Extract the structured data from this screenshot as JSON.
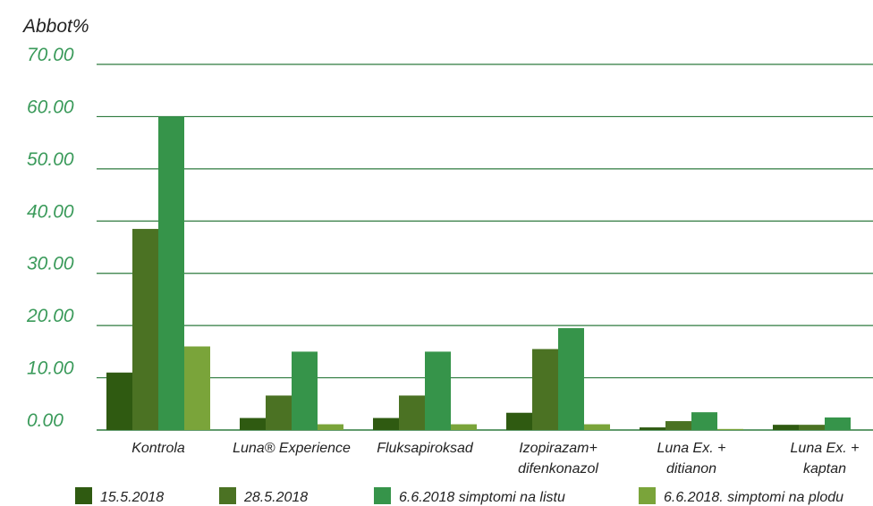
{
  "chart_data": {
    "type": "bar",
    "title": "",
    "ylabel": "Abbot%",
    "xlabel": "",
    "ylim": [
      0,
      70
    ],
    "yticks": [
      "0.00",
      "10.00",
      "20.00",
      "30.00",
      "40.00",
      "50.00",
      "60.00",
      "70.00"
    ],
    "grid": true,
    "legend_position": "bottom",
    "categories": [
      [
        "Kontrola"
      ],
      [
        "Luna® Experience"
      ],
      [
        "Fluksapiroksad"
      ],
      [
        "Izopirazam+",
        "difenkonazol"
      ],
      [
        "Luna Ex. +",
        "ditianon"
      ],
      [
        "Luna Ex. +",
        "kaptan"
      ]
    ],
    "series": [
      {
        "name": "15.5.2018",
        "color": "#2f5a11",
        "values": [
          11.0,
          2.3,
          2.3,
          3.3,
          0.5,
          1.0
        ]
      },
      {
        "name": "28.5.2018",
        "color": "#4b7223",
        "values": [
          38.5,
          6.6,
          6.6,
          15.5,
          1.7,
          1.0
        ]
      },
      {
        "name": "6.6.2018 simptomi na listu",
        "color": "#36944a",
        "values": [
          60.0,
          15.0,
          15.0,
          19.5,
          3.4,
          2.4
        ]
      },
      {
        "name": "6.6.2018. simptomi na plodu",
        "color": "#7aa43a",
        "values": [
          16.0,
          1.1,
          1.1,
          1.1,
          0.2,
          0.0
        ]
      }
    ],
    "colors": {
      "axis_tick_text": "#3a9a5a",
      "grid": "#2e7a3e",
      "axis_title_text": "#222222",
      "category_text": "#222222"
    }
  }
}
